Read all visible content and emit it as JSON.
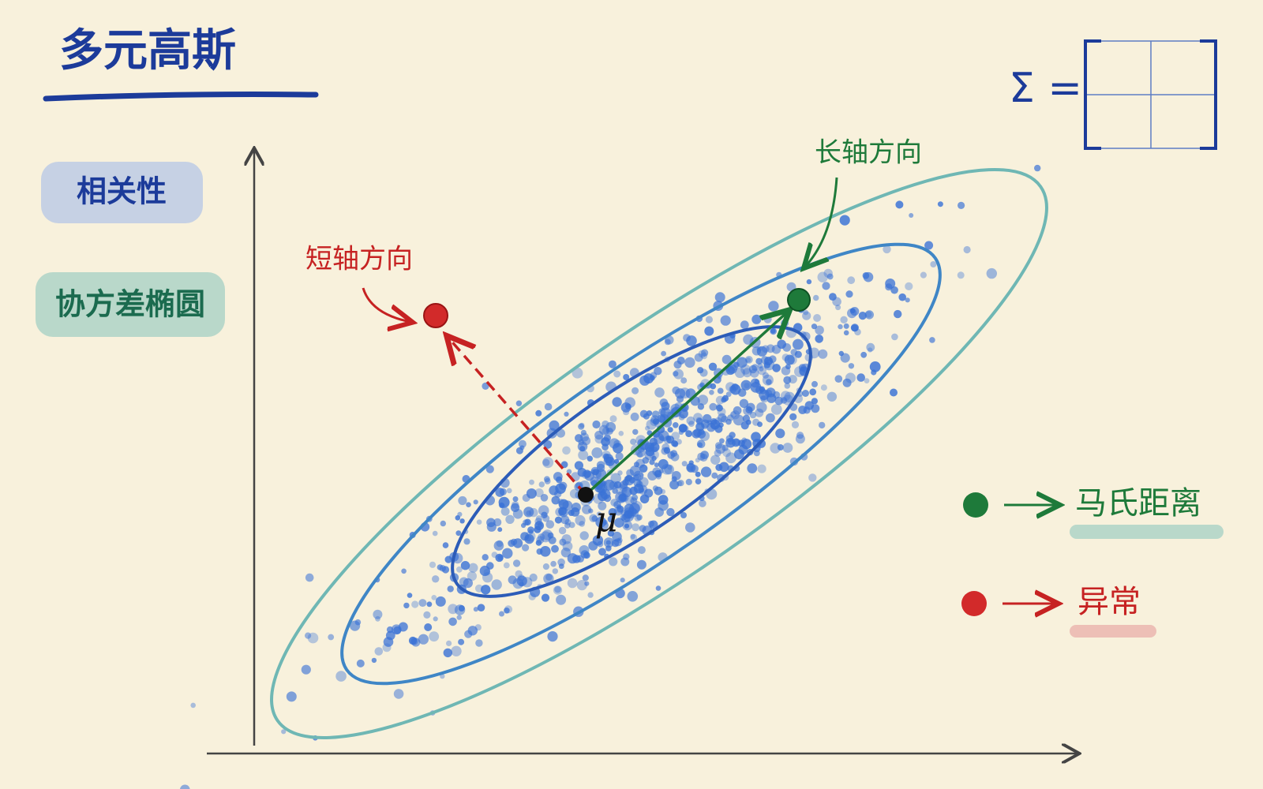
{
  "header": {
    "title": "多元高斯"
  },
  "tags": [
    "相关性",
    "协方差椭圆"
  ],
  "annotations": {
    "minor_axis": "短轴方向",
    "major_axis": "长轴方向",
    "mean": "μ",
    "sigma": "Σ ="
  },
  "legend": [
    {
      "label": "马氏距离"
    },
    {
      "label": "异常"
    }
  ]
}
